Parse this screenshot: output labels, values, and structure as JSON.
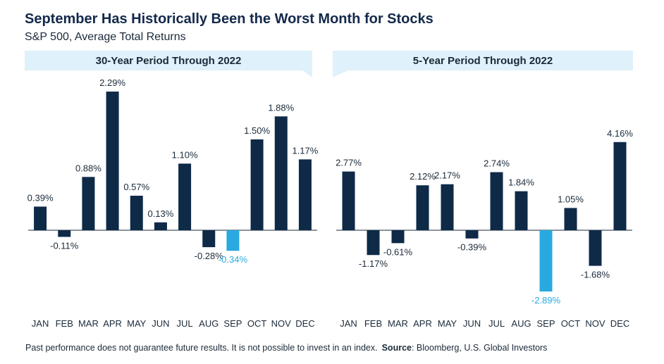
{
  "header": {
    "title": "September Has Historically Been the Worst Month for Stocks",
    "subtitle": "S&P 500, Average Total Returns"
  },
  "footer": {
    "disclaimer": "Past performance does not guarantee future results. It is not possible to invest in an index.",
    "source_label": "Source",
    "source_text": ": Bloomberg, U.S. Global Investors"
  },
  "colors": {
    "bar": "#0e2a47",
    "highlight": "#29a9e0",
    "banner": "#dff1fa",
    "axis": "#1b2a3a"
  },
  "chart_data": [
    {
      "type": "bar",
      "title": "30-Year Period Through 2022",
      "categories": [
        "JAN",
        "FEB",
        "MAR",
        "APR",
        "MAY",
        "JUN",
        "JUL",
        "AUG",
        "SEP",
        "OCT",
        "NOV",
        "DEC"
      ],
      "values": [
        0.39,
        -0.11,
        0.88,
        2.29,
        0.57,
        0.13,
        1.1,
        -0.28,
        -0.34,
        1.5,
        1.88,
        1.17
      ],
      "labels": [
        "0.39%",
        "-0.11%",
        "0.88%",
        "2.29%",
        "0.57%",
        "0.13%",
        "1.10%",
        "-0.28%",
        "-0.34%",
        "1.50%",
        "1.88%",
        "1.17%"
      ],
      "highlight": "SEP",
      "ylim": [
        -0.6,
        2.5
      ]
    },
    {
      "type": "bar",
      "title": "5-Year Period Through 2022",
      "categories": [
        "JAN",
        "FEB",
        "MAR",
        "APR",
        "MAY",
        "JUN",
        "JUL",
        "AUG",
        "SEP",
        "OCT",
        "NOV",
        "DEC"
      ],
      "values": [
        2.77,
        -1.17,
        -0.61,
        2.12,
        2.17,
        -0.39,
        2.74,
        1.84,
        -2.89,
        1.05,
        -1.68,
        4.16
      ],
      "labels": [
        "2.77%",
        "-1.17%",
        "-0.61%",
        "2.12%",
        "2.17%",
        "-0.39%",
        "2.74%",
        "1.84%",
        "-2.89%",
        "1.05%",
        "-1.68%",
        "4.16%"
      ],
      "highlight": "SEP",
      "ylim": [
        -3.0,
        4.5
      ]
    }
  ]
}
